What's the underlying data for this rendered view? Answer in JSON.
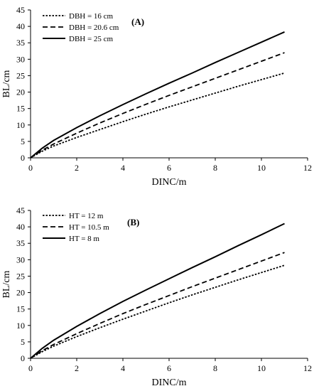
{
  "chart_data": [
    {
      "type": "line",
      "panel_label": "(A)",
      "xlabel": "DINC/m",
      "ylabel": "BL/cm",
      "xlim": [
        0,
        12
      ],
      "ylim": [
        0,
        45
      ],
      "xticks": [
        0,
        2,
        4,
        6,
        8,
        10,
        12
      ],
      "yticks": [
        0,
        5,
        10,
        15,
        20,
        25,
        30,
        35,
        40,
        45
      ],
      "grid": false,
      "legend_position": "top-left",
      "x": [
        0,
        0.5,
        1,
        2,
        3,
        4,
        5,
        6,
        7,
        8,
        9,
        10,
        11
      ],
      "series": [
        {
          "name": "DBH = 16 cm",
          "style": "dotted",
          "values": [
            0,
            2.0,
            3.6,
            6.2,
            8.6,
            11.0,
            13.3,
            15.5,
            17.6,
            19.7,
            21.8,
            23.8,
            25.8
          ]
        },
        {
          "name": "DBH = 20.6 cm",
          "style": "dashed",
          "values": [
            0,
            2.3,
            4.2,
            7.5,
            10.6,
            13.5,
            16.3,
            19.0,
            21.6,
            24.2,
            26.8,
            29.4,
            32.0
          ]
        },
        {
          "name": "DBH = 25 cm",
          "style": "solid",
          "values": [
            0,
            2.9,
            5.3,
            9.2,
            12.8,
            16.2,
            19.5,
            22.7,
            25.8,
            29.0,
            32.1,
            35.2,
            38.3
          ]
        }
      ]
    },
    {
      "type": "line",
      "panel_label": "(B)",
      "xlabel": "DINC/m",
      "ylabel": "BL/cm",
      "xlim": [
        0,
        12
      ],
      "ylim": [
        0,
        45
      ],
      "xticks": [
        0,
        2,
        4,
        6,
        8,
        10,
        12
      ],
      "yticks": [
        0,
        5,
        10,
        15,
        20,
        25,
        30,
        35,
        40,
        45
      ],
      "grid": false,
      "legend_position": "top-left",
      "x": [
        0,
        0.5,
        1,
        2,
        3,
        4,
        5,
        6,
        7,
        8,
        9,
        10,
        11
      ],
      "series": [
        {
          "name": "HT = 12 m",
          "style": "dotted",
          "values": [
            0,
            2.0,
            3.7,
            6.6,
            9.3,
            11.9,
            14.4,
            16.9,
            19.3,
            21.6,
            23.9,
            26.1,
            28.3
          ]
        },
        {
          "name": "HT = 10.5 m",
          "style": "dashed",
          "values": [
            0,
            2.3,
            4.2,
            7.5,
            10.6,
            13.6,
            16.4,
            19.1,
            21.8,
            24.4,
            27.0,
            29.6,
            32.2
          ]
        },
        {
          "name": "HT = 8 m",
          "style": "solid",
          "values": [
            0,
            3.0,
            5.5,
            9.7,
            13.6,
            17.3,
            20.8,
            24.2,
            27.6,
            30.9,
            34.3,
            37.6,
            41.0
          ]
        }
      ]
    }
  ]
}
